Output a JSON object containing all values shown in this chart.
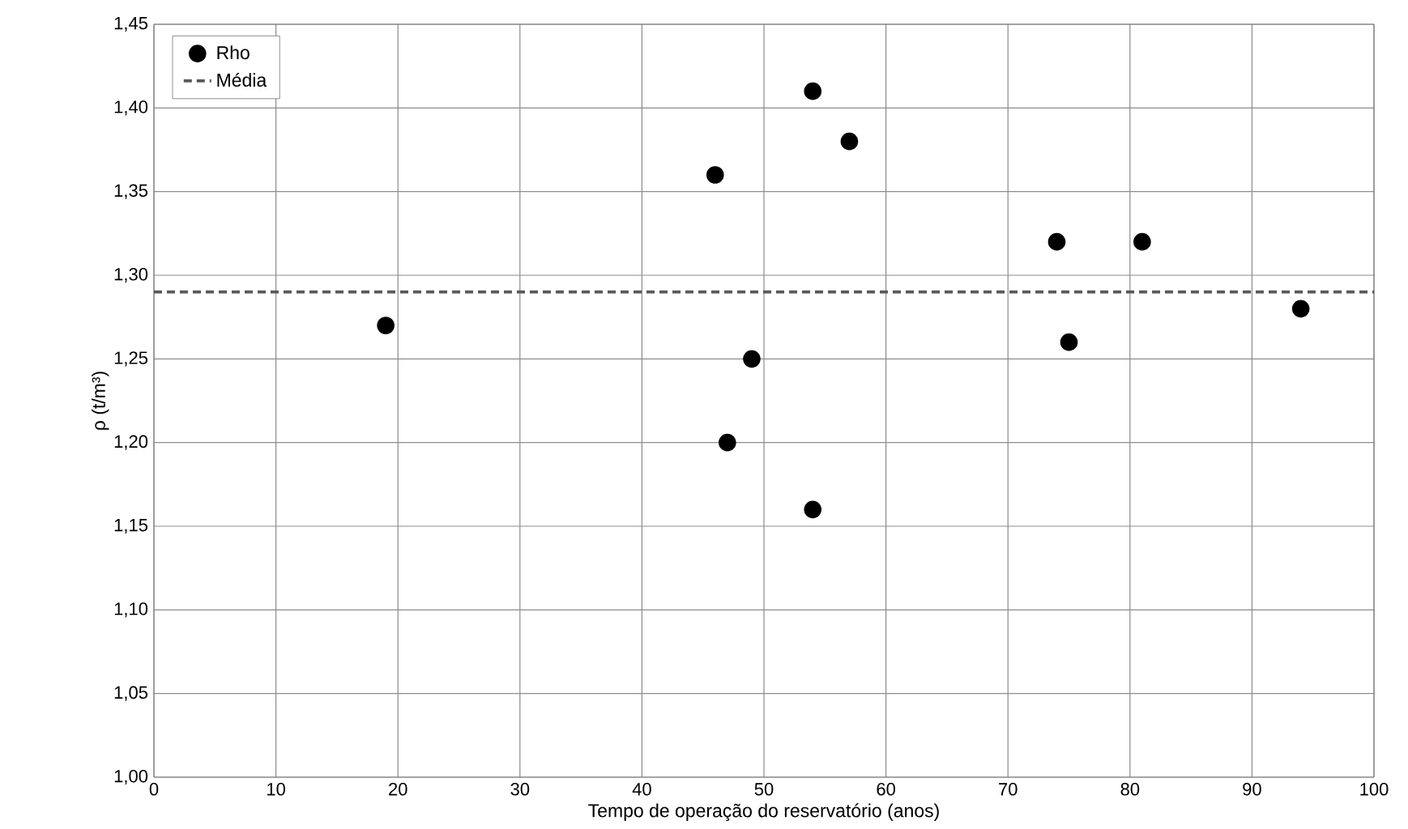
{
  "chart_data": {
    "type": "scatter",
    "xlabel": "Tempo de operação do reservatório (anos)",
    "ylabel": "ρ (t/m³)",
    "xlim": [
      0,
      100
    ],
    "xticks": [
      0,
      10,
      20,
      30,
      40,
      50,
      60,
      70,
      80,
      90,
      100
    ],
    "ylim": [
      1.0,
      1.45
    ],
    "yticks": [
      {
        "value": 1.0,
        "label": "1,00"
      },
      {
        "value": 1.05,
        "label": "1,05"
      },
      {
        "value": 1.1,
        "label": "1,10"
      },
      {
        "value": 1.15,
        "label": "1,15"
      },
      {
        "value": 1.2,
        "label": "1,20"
      },
      {
        "value": 1.25,
        "label": "1,25"
      },
      {
        "value": 1.3,
        "label": "1,30"
      },
      {
        "value": 1.35,
        "label": "1,35"
      },
      {
        "value": 1.4,
        "label": "1,40"
      },
      {
        "value": 1.45,
        "label": "1,45"
      }
    ],
    "grid": true,
    "legend": "top left",
    "series": [
      {
        "name": "Rho",
        "marker": "circle",
        "color": "#000000",
        "x": [
          19,
          46,
          47,
          49,
          54,
          54,
          57,
          74,
          75,
          81,
          94
        ],
        "values": [
          1.27,
          1.36,
          1.2,
          1.25,
          1.41,
          1.16,
          1.38,
          1.32,
          1.26,
          1.32,
          1.28
        ]
      },
      {
        "name": "Média",
        "type": "line",
        "line_style": "dashed",
        "color": "#595959",
        "x": [
          0,
          100
        ],
        "values": [
          1.29,
          1.29
        ]
      }
    ]
  }
}
